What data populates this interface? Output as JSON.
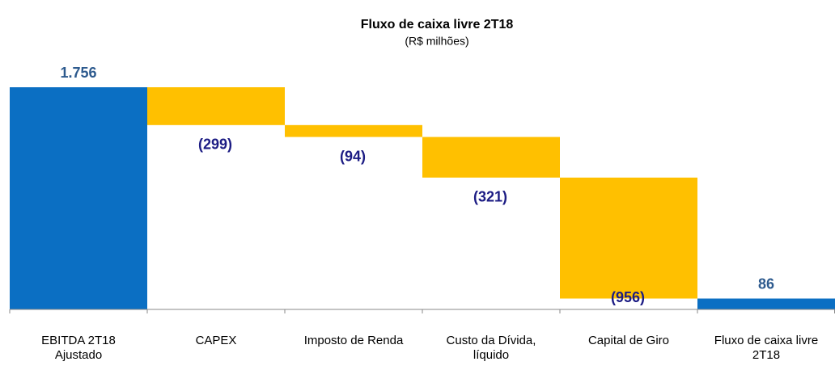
{
  "chart_data": {
    "type": "waterfall",
    "title": "Fluxo de caixa livre 2T18",
    "subtitle": "(R$ milhões)",
    "categories": [
      "EBITDA 2T18 Ajustado",
      "CAPEX",
      "Imposto de Renda",
      "Custo da Dívida, líquido",
      "Capital de Giro",
      "Fluxo de caixa livre 2T18"
    ],
    "values": [
      1756,
      -299,
      -94,
      -321,
      -956,
      86
    ],
    "value_labels": [
      "1.756",
      "(299)",
      "(94)",
      "(321)",
      "(956)",
      "86"
    ],
    "colors": [
      "#0b6fc3",
      "#ffc000",
      "#ffc000",
      "#ffc000",
      "#ffc000",
      "#0b6fc3"
    ]
  }
}
